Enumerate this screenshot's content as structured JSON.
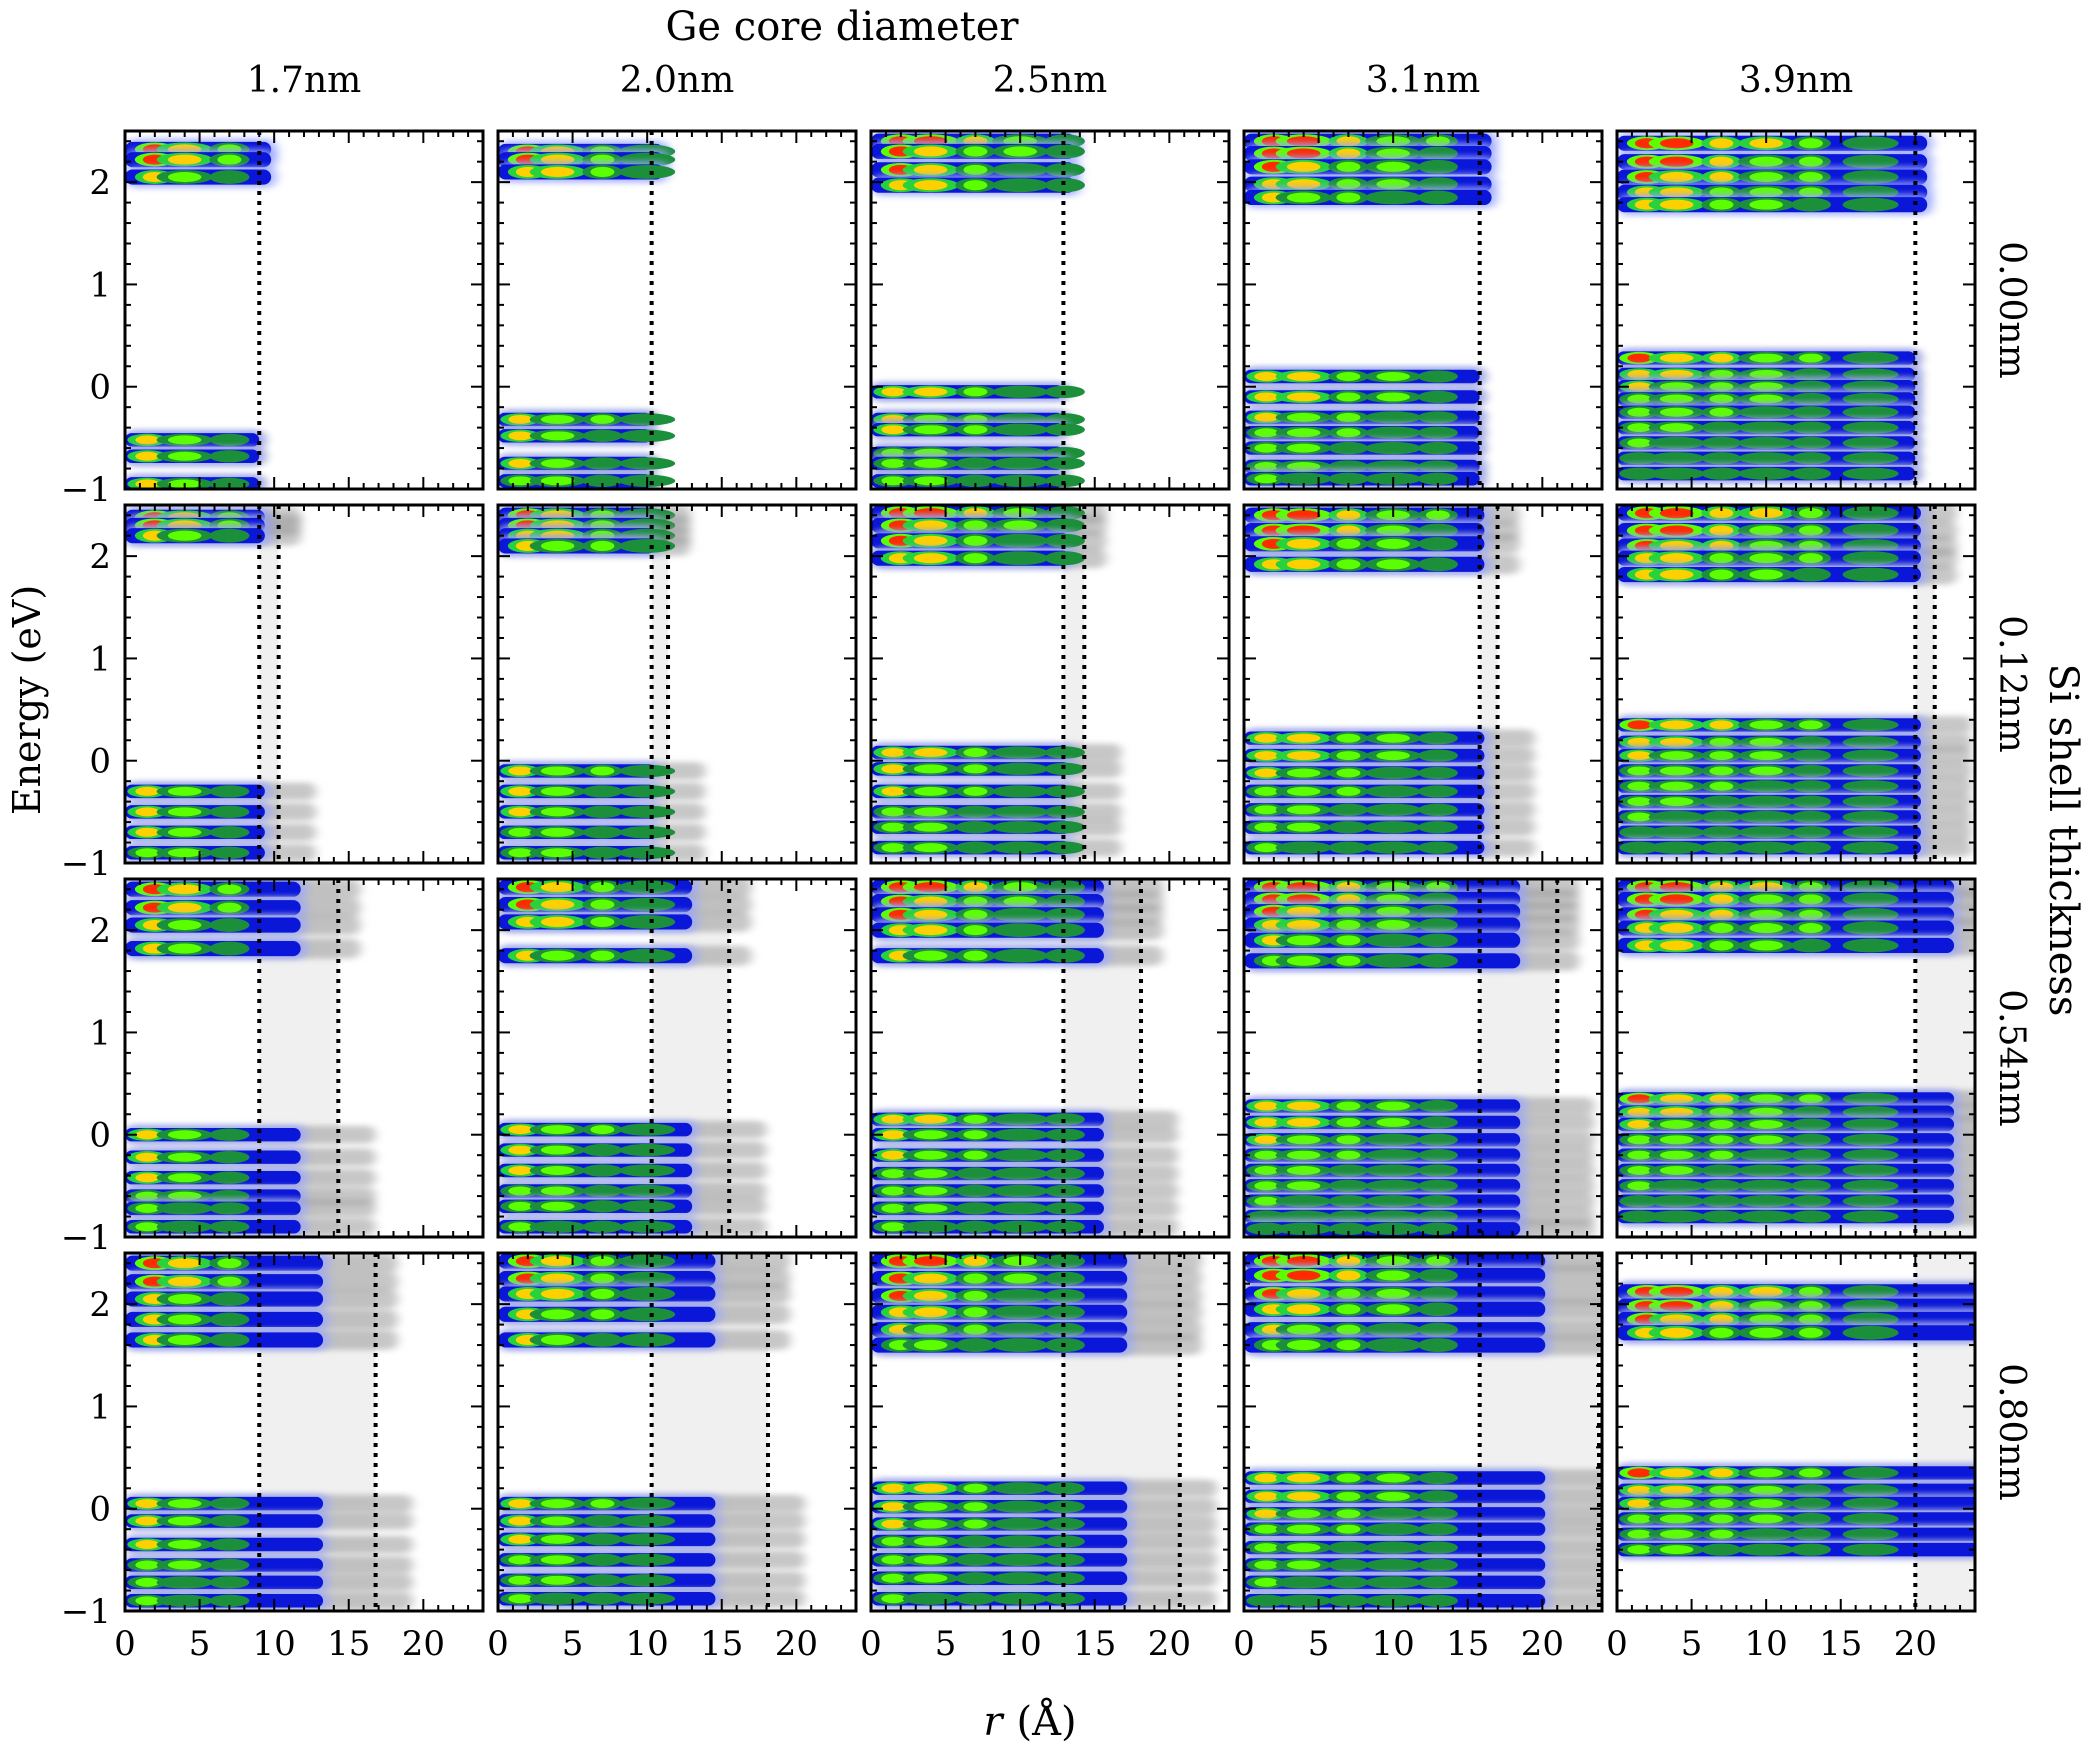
{
  "figure": {
    "column_group_label": "Ge core diameter",
    "row_group_label": "Si shell thickness",
    "xlabel_var": "r",
    "xlabel_unit": "(Å)",
    "ylabel": "Energy (eV)"
  },
  "chart_data": {
    "type": "heatmap",
    "columns": [
      "1.7nm",
      "2.0nm",
      "2.5nm",
      "3.1nm",
      "3.9nm"
    ],
    "rows": [
      "0.00nm",
      "0.12nm",
      "0.54nm",
      "0.80nm"
    ],
    "xlim": [
      0,
      24
    ],
    "ylim": [
      -1,
      2.5
    ],
    "xticks": [
      0,
      5,
      10,
      15,
      20
    ],
    "yticks": [
      -1,
      0,
      1,
      2
    ],
    "core_radius_A": [
      9.0,
      10.3,
      12.9,
      15.8,
      20.0
    ],
    "shell_outer_radius_A": [
      [
        9.0,
        10.3,
        12.9,
        15.8,
        20.0
      ],
      [
        10.3,
        11.4,
        14.3,
        17.0,
        21.3
      ],
      [
        14.3,
        15.5,
        18.1,
        21.0,
        25.0
      ],
      [
        16.8,
        18.1,
        20.7,
        23.8,
        28.0
      ]
    ],
    "state_energies_eV": {
      "0.00nm": {
        "1.7nm": {
          "conduction": [
            2.32,
            2.22,
            2.05
          ],
          "valence": [
            -0.52,
            -0.68,
            -0.95
          ]
        },
        "2.0nm": {
          "conduction": [
            2.3,
            2.22,
            2.1
          ],
          "valence": [
            -0.32,
            -0.48,
            -0.75,
            -0.92
          ]
        },
        "2.5nm": {
          "conduction": [
            2.4,
            2.3,
            2.12,
            1.97
          ],
          "valence": [
            -0.05,
            -0.32,
            -0.42,
            -0.65,
            -0.75,
            -0.92
          ]
        },
        "3.1nm": {
          "conduction": [
            2.4,
            2.28,
            2.15,
            1.98,
            1.85
          ],
          "valence": [
            0.1,
            -0.1,
            -0.3,
            -0.45,
            -0.6,
            -0.78,
            -0.9
          ]
        },
        "3.9nm": {
          "conduction": [
            2.38,
            2.2,
            2.05,
            1.9,
            1.78
          ],
          "valence": [
            0.28,
            0.12,
            0.0,
            -0.12,
            -0.25,
            -0.4,
            -0.55,
            -0.7,
            -0.85
          ]
        }
      },
      "0.12nm": {
        "1.7nm": {
          "conduction": [
            2.38,
            2.3,
            2.2
          ],
          "valence": [
            -0.3,
            -0.5,
            -0.7,
            -0.9
          ]
        },
        "2.0nm": {
          "conduction": [
            2.4,
            2.3,
            2.2,
            2.1
          ],
          "valence": [
            -0.1,
            -0.3,
            -0.5,
            -0.7,
            -0.9
          ]
        },
        "2.5nm": {
          "conduction": [
            2.42,
            2.3,
            2.15,
            1.98
          ],
          "valence": [
            0.08,
            -0.08,
            -0.3,
            -0.5,
            -0.65,
            -0.85
          ]
        },
        "3.1nm": {
          "conduction": [
            2.4,
            2.25,
            2.12,
            1.92
          ],
          "valence": [
            0.22,
            0.05,
            -0.12,
            -0.3,
            -0.48,
            -0.65,
            -0.85
          ]
        },
        "3.9nm": {
          "conduction": [
            2.42,
            2.25,
            2.1,
            1.98,
            1.82
          ],
          "valence": [
            0.35,
            0.18,
            0.05,
            -0.1,
            -0.25,
            -0.4,
            -0.55,
            -0.7,
            -0.85
          ]
        }
      },
      "0.54nm": {
        "1.7nm": {
          "conduction": [
            2.4,
            2.22,
            2.05,
            1.82
          ],
          "valence": [
            0.0,
            -0.22,
            -0.42,
            -0.6,
            -0.72,
            -0.9
          ]
        },
        "2.0nm": {
          "conduction": [
            2.42,
            2.25,
            2.08,
            1.75
          ],
          "valence": [
            0.05,
            -0.15,
            -0.35,
            -0.55,
            -0.7,
            -0.9
          ]
        },
        "2.5nm": {
          "conduction": [
            2.42,
            2.28,
            2.15,
            2.0,
            1.75
          ],
          "valence": [
            0.15,
            0.0,
            -0.2,
            -0.38,
            -0.55,
            -0.72,
            -0.9
          ]
        },
        "3.1nm": {
          "conduction": [
            2.42,
            2.3,
            2.18,
            2.05,
            1.9,
            1.7
          ],
          "valence": [
            0.28,
            0.12,
            -0.05,
            -0.2,
            -0.35,
            -0.5,
            -0.65,
            -0.8,
            -0.92
          ]
        },
        "3.9nm": {
          "conduction": [
            2.42,
            2.3,
            2.15,
            2.02,
            1.85
          ],
          "valence": [
            0.35,
            0.22,
            0.1,
            -0.05,
            -0.2,
            -0.35,
            -0.5,
            -0.65,
            -0.8
          ]
        }
      },
      "0.80nm": {
        "1.7nm": {
          "conduction": [
            2.4,
            2.22,
            2.05,
            1.85,
            1.65
          ],
          "valence": [
            0.05,
            -0.12,
            -0.35,
            -0.55,
            -0.72,
            -0.9
          ]
        },
        "2.0nm": {
          "conduction": [
            2.42,
            2.25,
            2.1,
            1.9,
            1.65
          ],
          "valence": [
            0.05,
            -0.12,
            -0.3,
            -0.5,
            -0.7,
            -0.88
          ]
        },
        "2.5nm": {
          "conduction": [
            2.42,
            2.25,
            2.08,
            1.92,
            1.75,
            1.6
          ],
          "valence": [
            0.2,
            0.02,
            -0.15,
            -0.32,
            -0.5,
            -0.68,
            -0.88
          ]
        },
        "3.1nm": {
          "conduction": [
            2.42,
            2.28,
            2.1,
            1.95,
            1.75,
            1.6
          ],
          "valence": [
            0.3,
            0.12,
            -0.05,
            -0.2,
            -0.38,
            -0.55,
            -0.72,
            -0.9
          ]
        },
        "3.9nm": {
          "conduction": [
            2.12,
            1.98,
            1.85,
            1.72
          ],
          "valence": [
            0.35,
            0.18,
            0.05,
            -0.1,
            -0.25,
            -0.4
          ]
        }
      }
    },
    "colormap": [
      "#d8dcff",
      "#9aa6ff",
      "#4a55ff",
      "#0a16d8",
      "#1b8f3a",
      "#27d23a",
      "#5cff00",
      "#ffd000",
      "#ff2a00"
    ],
    "shell_density_color": "#9a9a9a",
    "shell_region_color": "#f0f0f0",
    "interface_line_style": "dotted",
    "grid": false,
    "legend": "none"
  }
}
